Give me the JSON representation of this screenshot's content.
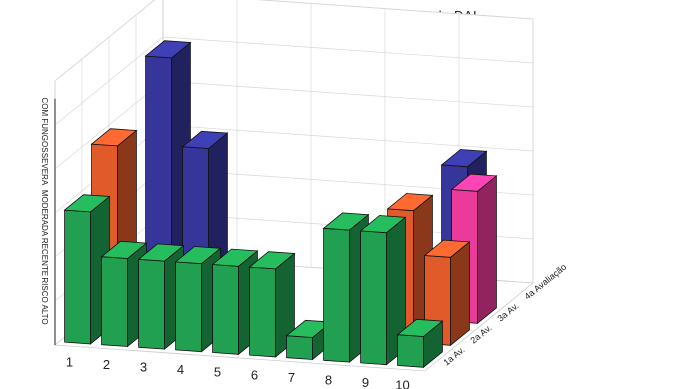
{
  "chart_data": {
    "type": "bar",
    "variant": "3d",
    "title": "Evolução da Classificação dos casos de DAI",
    "x_tick_labels": [
      "1",
      "2",
      "3",
      "4",
      "5",
      "6",
      "7",
      "8",
      "9",
      "10"
    ],
    "x_label_partial": "C",
    "depth_labels": [
      "1a Av.",
      "2a Av.",
      "3a Av.",
      "4a Avaliação"
    ],
    "z_tick_labels": [
      "RISCO ALTO",
      "RECENTE",
      "MODERADA",
      "SEVERA",
      "COM FUNGOS"
    ],
    "z_ticks": [
      1,
      2,
      3,
      4,
      5
    ],
    "z_range": [
      0,
      6
    ],
    "grid": true,
    "colors": {
      "1a Av.": "#20a050",
      "2a Av.": "#e05a2a",
      "3a Av.": "#ea3a9a",
      "4a Avaliação": "#35359a"
    },
    "series": [
      {
        "name": "1a Av.",
        "values": [
          3,
          2,
          2,
          2,
          2,
          2,
          0.5,
          3,
          3,
          0.7
        ]
      },
      {
        "name": "2a Av.",
        "values": [
          4,
          1,
          1,
          0,
          0,
          0,
          0,
          0,
          3,
          2
        ]
      },
      {
        "name": "3a Av.",
        "values": [
          0,
          0,
          0,
          0,
          0,
          0,
          0,
          0,
          0,
          3
        ]
      },
      {
        "name": "4a Avaliação",
        "values": [
          5,
          3,
          0,
          0,
          0,
          0,
          0,
          0,
          3,
          0
        ]
      }
    ]
  }
}
